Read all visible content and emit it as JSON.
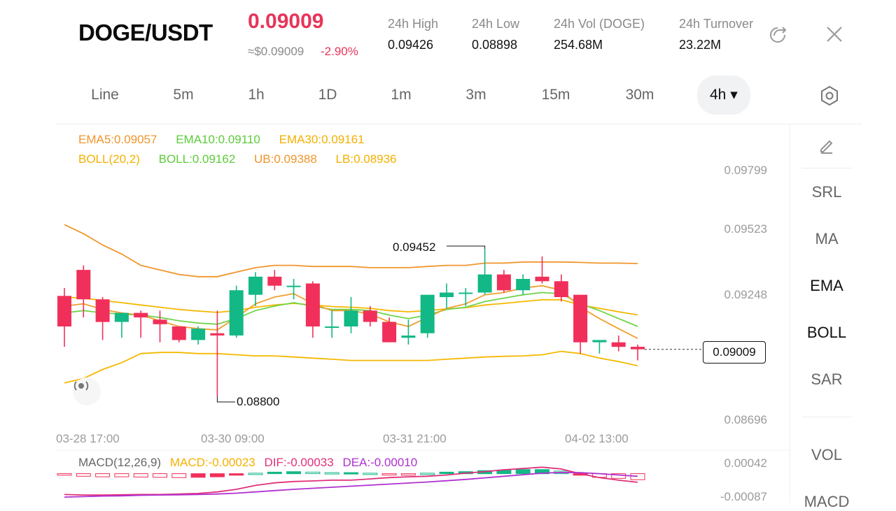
{
  "header": {
    "pair": "DOGE/USDT",
    "price": "0.09009",
    "approx": "≈$0.09009",
    "change": "-2.90%",
    "stats": [
      {
        "label": "24h   High",
        "value": "0.09426"
      },
      {
        "label": "24h   Low",
        "value": "0.08898"
      },
      {
        "label": "24h   Vol (DOGE)",
        "value": "254.68M"
      },
      {
        "label": "24h   Turnover",
        "value": "23.22M"
      }
    ],
    "icons": {
      "share": "share-icon",
      "close": "close-icon"
    }
  },
  "tabs": [
    {
      "label": "Line"
    },
    {
      "label": "5m"
    },
    {
      "label": "1h"
    },
    {
      "label": "1D"
    },
    {
      "label": "1m"
    },
    {
      "label": "3m"
    },
    {
      "label": "15m"
    },
    {
      "label": "30m"
    },
    {
      "label": "4h ▾",
      "active": true
    }
  ],
  "legend": {
    "ema5": "EMA5:0.09057",
    "ema10": "EMA10:0.09110",
    "ema30": "EMA30:0.09161",
    "boll": "BOLL(20,2)",
    "boll_mid": "BOLL:0.09162",
    "ub": "UB:0.09388",
    "lb": "LB:0.08936"
  },
  "macd_legend": {
    "name": "MACD(12,26,9)",
    "macd": "MACD:-0.00023",
    "dif": "DIF:-0.00033",
    "dea": "DEA:-0.00010"
  },
  "colors": {
    "up": "#12b886",
    "down": "#f0305a",
    "ema5": "#f0a030",
    "ema10": "#6fd44a",
    "ema30": "#f5b800",
    "ub": "#f0962c",
    "lb": "#f5b800",
    "dif": "#e0307a",
    "dea": "#b030d0"
  },
  "sidepanel": {
    "items": [
      "SRL",
      "MA",
      "EMA",
      "BOLL",
      "SAR",
      "VOL",
      "MACD"
    ],
    "active": [
      "EMA",
      "BOLL"
    ]
  },
  "chart_data": {
    "type": "candlestick",
    "x_labels": [
      "03-28 17:00",
      "03-30 09:00",
      "03-31 21:00",
      "04-02 13:00"
    ],
    "y_labels": [
      "0.09799",
      "0.09523",
      "0.09248",
      "0.08696"
    ],
    "macd_y_labels": [
      "0.00042",
      "-0.00087"
    ],
    "annotations": {
      "high": "0.09452",
      "low": "0.08800",
      "last": "0.09009"
    },
    "candles": [
      {
        "o": 0.09245,
        "h": 0.0928,
        "l": 0.0902,
        "c": 0.0911
      },
      {
        "o": 0.0936,
        "h": 0.0938,
        "l": 0.0915,
        "c": 0.0923
      },
      {
        "o": 0.0923,
        "h": 0.0924,
        "l": 0.0905,
        "c": 0.0913
      },
      {
        "o": 0.0913,
        "h": 0.0917,
        "l": 0.0906,
        "c": 0.0917
      },
      {
        "o": 0.0917,
        "h": 0.0918,
        "l": 0.0906,
        "c": 0.0915
      },
      {
        "o": 0.0914,
        "h": 0.0918,
        "l": 0.0904,
        "c": 0.0912
      },
      {
        "o": 0.0911,
        "h": 0.0911,
        "l": 0.0904,
        "c": 0.0905
      },
      {
        "o": 0.0905,
        "h": 0.0911,
        "l": 0.0903,
        "c": 0.091
      },
      {
        "o": 0.0908,
        "h": 0.0918,
        "l": 0.088,
        "c": 0.0907
      },
      {
        "o": 0.0907,
        "h": 0.0929,
        "l": 0.0906,
        "c": 0.0927
      },
      {
        "o": 0.0925,
        "h": 0.0935,
        "l": 0.092,
        "c": 0.0933
      },
      {
        "o": 0.0933,
        "h": 0.0936,
        "l": 0.0927,
        "c": 0.0929
      },
      {
        "o": 0.0929,
        "h": 0.0932,
        "l": 0.0923,
        "c": 0.0929
      },
      {
        "o": 0.093,
        "h": 0.0931,
        "l": 0.0906,
        "c": 0.0911
      },
      {
        "o": 0.0911,
        "h": 0.0918,
        "l": 0.0906,
        "c": 0.0911
      },
      {
        "o": 0.0911,
        "h": 0.0924,
        "l": 0.0908,
        "c": 0.0918
      },
      {
        "o": 0.0918,
        "h": 0.092,
        "l": 0.0911,
        "c": 0.0913
      },
      {
        "o": 0.0913,
        "h": 0.0915,
        "l": 0.0904,
        "c": 0.0904
      },
      {
        "o": 0.0906,
        "h": 0.0914,
        "l": 0.0903,
        "c": 0.0907
      },
      {
        "o": 0.0908,
        "h": 0.0925,
        "l": 0.0906,
        "c": 0.0925
      },
      {
        "o": 0.0924,
        "h": 0.093,
        "l": 0.0919,
        "c": 0.0926
      },
      {
        "o": 0.0926,
        "h": 0.0928,
        "l": 0.092,
        "c": 0.0926
      },
      {
        "o": 0.0926,
        "h": 0.09452,
        "l": 0.0925,
        "c": 0.0934
      },
      {
        "o": 0.0934,
        "h": 0.0936,
        "l": 0.0926,
        "c": 0.0927
      },
      {
        "o": 0.0927,
        "h": 0.0934,
        "l": 0.0925,
        "c": 0.0932
      },
      {
        "o": 0.0933,
        "h": 0.0942,
        "l": 0.093,
        "c": 0.0931
      },
      {
        "o": 0.0931,
        "h": 0.0934,
        "l": 0.0922,
        "c": 0.0924
      },
      {
        "o": 0.0925,
        "h": 0.0925,
        "l": 0.0899,
        "c": 0.0904
      },
      {
        "o": 0.0904,
        "h": 0.0905,
        "l": 0.0899,
        "c": 0.0905
      },
      {
        "o": 0.0904,
        "h": 0.0907,
        "l": 0.09,
        "c": 0.0902
      },
      {
        "o": 0.0902,
        "h": 0.0903,
        "l": 0.0896,
        "c": 0.09009
      }
    ],
    "ema5": [
      0.092,
      0.0921,
      0.09185,
      0.0917,
      0.0916,
      0.09135,
      0.0911,
      0.091,
      0.09095,
      0.0915,
      0.0921,
      0.0924,
      0.09255,
      0.0921,
      0.0918,
      0.0918,
      0.09165,
      0.0913,
      0.0911,
      0.0915,
      0.0919,
      0.0921,
      0.0925,
      0.0926,
      0.0928,
      0.0929,
      0.0927,
      0.09195,
      0.09145,
      0.091,
      0.09057
    ],
    "ema10": [
      0.0917,
      0.0918,
      0.0917,
      0.09165,
      0.0916,
      0.0915,
      0.09135,
      0.09125,
      0.0912,
      0.09145,
      0.0918,
      0.092,
      0.09215,
      0.092,
      0.09185,
      0.09185,
      0.0918,
      0.0916,
      0.09145,
      0.0916,
      0.09185,
      0.09195,
      0.0922,
      0.09235,
      0.0925,
      0.0926,
      0.09255,
      0.0921,
      0.0918,
      0.09145,
      0.0911
    ],
    "ema30": [
      0.0924,
      0.09235,
      0.09225,
      0.09215,
      0.09205,
      0.09195,
      0.09185,
      0.09178,
      0.09172,
      0.0918,
      0.09195,
      0.09205,
      0.09212,
      0.09205,
      0.09198,
      0.09195,
      0.0919,
      0.0918,
      0.09175,
      0.0918,
      0.09188,
      0.09193,
      0.09205,
      0.09212,
      0.0922,
      0.09228,
      0.09228,
      0.09205,
      0.0919,
      0.09175,
      0.09161
    ],
    "ub": [
      0.0956,
      0.0952,
      0.0947,
      0.0943,
      0.0938,
      0.0936,
      0.0934,
      0.0933,
      0.0933,
      0.0935,
      0.0937,
      0.0938,
      0.0938,
      0.09375,
      0.09375,
      0.09375,
      0.0937,
      0.0937,
      0.0937,
      0.09375,
      0.0938,
      0.0938,
      0.0939,
      0.0939,
      0.09395,
      0.09395,
      0.09395,
      0.09393,
      0.0939,
      0.0939,
      0.09388
    ],
    "lb": [
      0.0886,
      0.0888,
      0.0892,
      0.0895,
      0.0899,
      0.08995,
      0.08995,
      0.0899,
      0.0899,
      0.08985,
      0.0898,
      0.0898,
      0.08975,
      0.0897,
      0.08965,
      0.0896,
      0.0896,
      0.0896,
      0.0896,
      0.0896,
      0.08965,
      0.0897,
      0.08975,
      0.08978,
      0.0898,
      0.08985,
      0.09,
      0.0899,
      0.0897,
      0.08955,
      0.08936
    ],
    "macd_hist": [
      -6e-05,
      -0.0001,
      -0.00012,
      -0.00012,
      -0.00013,
      -0.00014,
      -0.00015,
      -0.00014,
      -0.00012,
      -6e-05,
      2e-05,
      6e-05,
      8e-05,
      6e-05,
      4e-05,
      4e-05,
      2e-05,
      -4e-05,
      -6e-05,
      2e-05,
      6e-05,
      8e-05,
      0.00012,
      0.00014,
      0.00016,
      0.00016,
      0.0001,
      -6e-05,
      -0.00014,
      -0.00018,
      -0.00023
    ],
    "dif": [
      -0.0008,
      -0.00082,
      -0.00082,
      -0.00081,
      -0.0008,
      -0.0008,
      -0.00078,
      -0.00076,
      -0.0007,
      -0.0006,
      -0.00045,
      -0.00035,
      -0.0003,
      -0.00028,
      -0.00025,
      -0.00025,
      -0.0002,
      -0.00015,
      -0.00012,
      -0.0001,
      -5e-05,
      2e-05,
      8e-05,
      0.00015,
      0.0002,
      0.00025,
      0.00018,
      0.0,
      -0.00015,
      -0.00025,
      -0.00033
    ],
    "dea": [
      -0.0009,
      -0.00088,
      -0.00086,
      -0.00085,
      -0.00083,
      -0.00082,
      -0.00081,
      -0.0008,
      -0.00078,
      -0.00075,
      -0.0007,
      -0.00065,
      -0.0006,
      -0.00056,
      -0.00052,
      -0.00048,
      -0.00044,
      -0.0004,
      -0.00036,
      -0.00032,
      -0.00027,
      -0.00022,
      -0.00016,
      -0.0001,
      -4e-05,
      2e-05,
      5e-05,
      4e-05,
      0.0,
      -5e-05,
      -0.0001
    ]
  }
}
